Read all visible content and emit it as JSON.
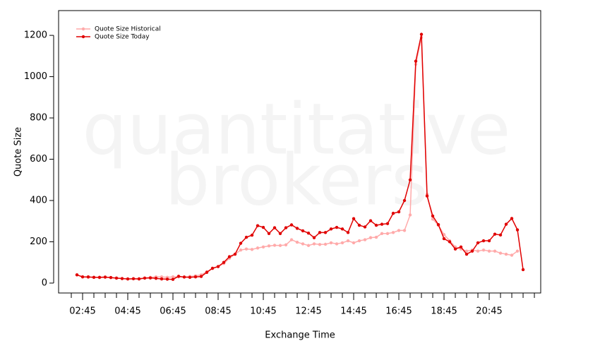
{
  "chart_data": {
    "type": "line",
    "watermark": [
      "quantitative",
      "brokers"
    ],
    "xlabel": "Exchange Time",
    "ylabel": "Quote Size",
    "x": [
      2.5,
      2.75,
      3,
      3.25,
      3.5,
      3.75,
      4,
      4.25,
      4.5,
      4.75,
      5,
      5.25,
      5.5,
      5.75,
      6,
      6.25,
      6.5,
      6.75,
      7,
      7.25,
      7.5,
      7.75,
      8,
      8.25,
      8.5,
      8.75,
      9,
      9.25,
      9.5,
      9.75,
      10,
      10.25,
      10.5,
      10.75,
      11,
      11.25,
      11.5,
      11.75,
      12,
      12.25,
      12.5,
      12.75,
      13,
      13.25,
      13.5,
      13.75,
      14,
      14.25,
      14.5,
      14.75,
      15,
      15.25,
      15.5,
      15.75,
      16,
      16.25,
      16.5,
      16.75,
      17,
      17.25,
      17.5,
      17.75,
      18,
      18.25,
      18.5,
      18.75,
      19,
      19.25,
      19.5,
      19.75,
      20,
      20.25,
      20.5,
      20.75,
      21,
      21.25,
      21.5,
      21.75,
      22,
      22.25
    ],
    "series": [
      {
        "name": "Quote Size Historical",
        "color": "#ffaaaa",
        "values": [
          40,
          30,
          28,
          28,
          26,
          28,
          26,
          25,
          22,
          20,
          22,
          22,
          25,
          28,
          30,
          30,
          28,
          30,
          30,
          30,
          32,
          35,
          40,
          55,
          70,
          80,
          95,
          120,
          140,
          160,
          165,
          163,
          170,
          175,
          180,
          183,
          182,
          185,
          210,
          198,
          190,
          182,
          190,
          187,
          188,
          195,
          190,
          195,
          205,
          195,
          205,
          210,
          220,
          222,
          240,
          240,
          245,
          255,
          255,
          330,
          1060,
          1190,
          430,
          310,
          280,
          235,
          205,
          175,
          165,
          155,
          160,
          155,
          160,
          155,
          155,
          145,
          140,
          135,
          155,
          null
        ]
      },
      {
        "name": "Quote Size Today",
        "color": "#e00000",
        "values": [
          40,
          30,
          30,
          28,
          28,
          29,
          27,
          24,
          22,
          20,
          21,
          20,
          24,
          25,
          23,
          20,
          19,
          18,
          33,
          29,
          28,
          30,
          32,
          52,
          72,
          80,
          100,
          128,
          140,
          193,
          222,
          232,
          278,
          270,
          240,
          268,
          240,
          268,
          282,
          265,
          253,
          242,
          220,
          245,
          245,
          262,
          270,
          262,
          245,
          312,
          280,
          272,
          302,
          280,
          285,
          288,
          338,
          345,
          400,
          500,
          1075,
          1205,
          422,
          325,
          283,
          215,
          200,
          165,
          175,
          140,
          155,
          195,
          205,
          205,
          237,
          233,
          285,
          313,
          258,
          65
        ]
      }
    ],
    "xlim": [
      1.6875,
      23.03
    ],
    "ylim": [
      -48,
      1320
    ],
    "xticks": [
      {
        "value": 2.75,
        "label": "02:45"
      },
      {
        "value": 4.75,
        "label": "04:45"
      },
      {
        "value": 6.75,
        "label": "06:45"
      },
      {
        "value": 8.75,
        "label": "08:45"
      },
      {
        "value": 10.75,
        "label": "10:45"
      },
      {
        "value": 12.75,
        "label": "12:45"
      },
      {
        "value": 14.75,
        "label": "14:45"
      },
      {
        "value": 16.75,
        "label": "16:45"
      },
      {
        "value": 18.75,
        "label": "18:45"
      },
      {
        "value": 20.75,
        "label": "20:45"
      }
    ],
    "xminorticks": [
      2.25,
      3.25,
      3.75,
      4.25,
      5.25,
      5.75,
      6.25,
      7.25,
      7.75,
      8.25,
      9.25,
      9.75,
      10.25,
      11.25,
      11.75,
      12.25,
      13.25,
      13.75,
      14.25,
      15.25,
      15.75,
      16.25,
      17.25,
      17.75,
      18.25,
      19.25,
      19.75,
      20.25,
      21.25,
      21.75,
      22.25,
      22.75
    ],
    "yticks": [
      0,
      200,
      400,
      600,
      800,
      1000,
      1200
    ],
    "legend": "top-left"
  }
}
